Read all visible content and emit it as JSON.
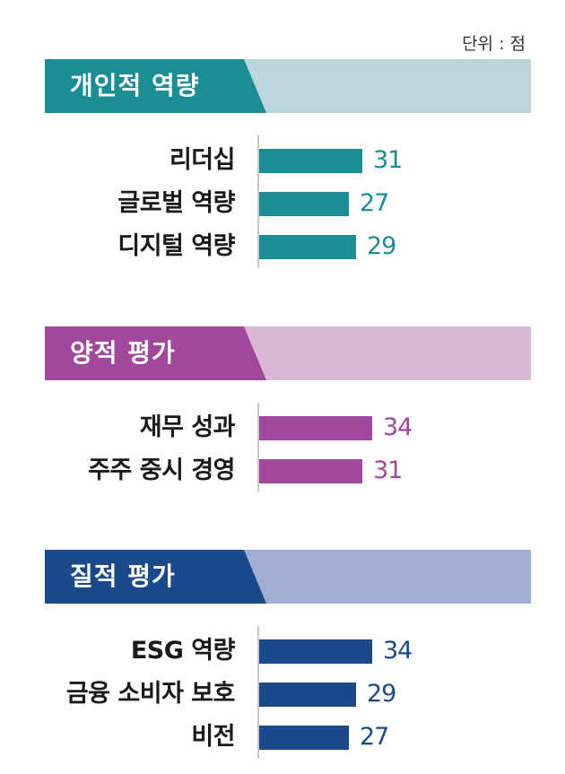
{
  "unit_label": "단위 : 점",
  "chart_data": {
    "type": "bar",
    "orientation": "horizontal",
    "unit": "점",
    "xlim": [
      0,
      40
    ],
    "groups": [
      {
        "title": "개인적 역량",
        "color": "#1a8e93",
        "light_color": "#bcd5d9",
        "categories": [
          "리더십",
          "글로벌 역량",
          "디지털 역량"
        ],
        "values": [
          31,
          27,
          29
        ]
      },
      {
        "title": "양적 평가",
        "color": "#a2479c",
        "light_color": "#d9b8d7",
        "categories": [
          "재무 성과",
          "주주 중시 경영"
        ],
        "values": [
          34,
          31
        ]
      },
      {
        "title": "질적 평가",
        "color": "#1a4a8c",
        "light_color": "#a0aed3",
        "categories": [
          "ESG 역량",
          "금융 소비자 보호",
          "비전"
        ],
        "values": [
          34,
          29,
          27
        ]
      }
    ]
  }
}
